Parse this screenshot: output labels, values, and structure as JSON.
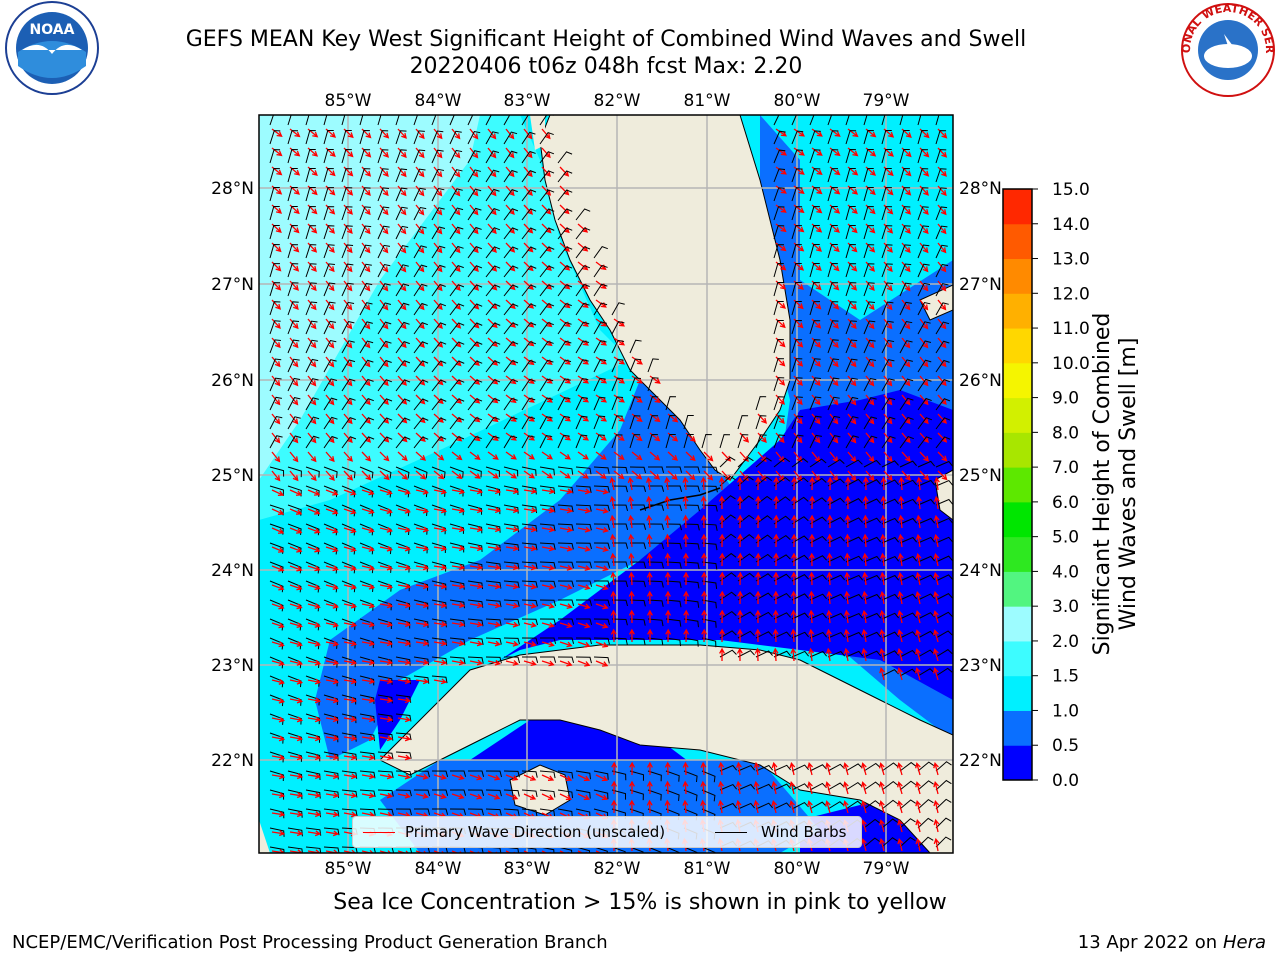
{
  "title": {
    "line1": "GEFS MEAN Key West Significant Height of Combined Wind Waves and Swell",
    "line2": "20220406 t06z 048h fcst   Max: 2.20"
  },
  "logos": {
    "left": "NOAA",
    "right": "NATIONAL WEATHER SERVICE"
  },
  "map": {
    "lon_ticks": [
      "85°W",
      "84°W",
      "83°W",
      "82°W",
      "81°W",
      "80°W",
      "79°W"
    ],
    "lat_ticks": [
      "28°N",
      "27°N",
      "26°N",
      "25°N",
      "24°N",
      "23°N",
      "22°N"
    ],
    "colors": {
      "land": "#efecdc",
      "grid": "#b5b5b5",
      "coast": "#000000",
      "arrow": "#ff0000",
      "barb": "#000000"
    }
  },
  "legend": {
    "wave_label": "Primary Wave Direction (unscaled)",
    "barb_label": "Wind Barbs"
  },
  "colorbar": {
    "ticks": [
      "0.0",
      "0.5",
      "1.0",
      "1.5",
      "2.0",
      "3.0",
      "4.0",
      "5.0",
      "6.0",
      "7.0",
      "8.0",
      "9.0",
      "10.0",
      "11.0",
      "12.0",
      "13.0",
      "14.0",
      "15.0"
    ],
    "colors": [
      "#0000ff",
      "#0a6fff",
      "#00f0ff",
      "#3dfcff",
      "#9dfcff",
      "#52f580",
      "#2ee820",
      "#00e600",
      "#5de800",
      "#a8e600",
      "#d2f000",
      "#f5f500",
      "#ffd700",
      "#ffb000",
      "#ff8a00",
      "#ff5a00",
      "#ff2800"
    ],
    "label_line1": "Significant Height of Combined",
    "label_line2": "Wind Waves and Swell [m]"
  },
  "note": "Sea Ice Concentration > 15% is shown in pink to yellow",
  "credit_left": "NCEP/EMC/Verification Post Processing Product Generation Branch",
  "credit_right_date": "13 Apr 2022 on ",
  "credit_right_host": "Hera"
}
